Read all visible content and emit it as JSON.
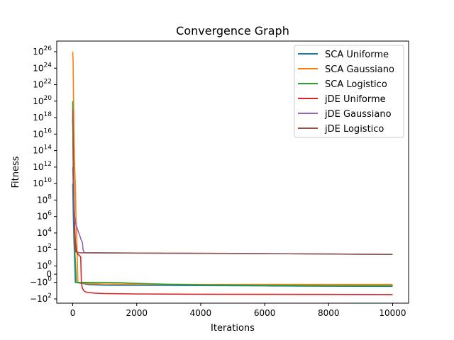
{
  "chart_data": {
    "type": "line",
    "title": "Convergence Graph",
    "xlabel": "Iterations",
    "ylabel": "Fitness",
    "yscale": "symlog",
    "xlim": [
      -500,
      10500
    ],
    "x_ticks": [
      0,
      2000,
      4000,
      6000,
      8000,
      10000
    ],
    "x_tick_labels": [
      "0",
      "2000",
      "4000",
      "6000",
      "8000",
      "10000"
    ],
    "y_ticks": [
      {
        "value": -100,
        "base": "−",
        "mant": "10",
        "exp": "2"
      },
      {
        "value": -1,
        "base": "−",
        "mant": "10",
        "exp": "0"
      },
      {
        "value": 0,
        "base": "",
        "mant": "0",
        "exp": ""
      },
      {
        "value": 1,
        "base": "",
        "mant": "10",
        "exp": "0"
      },
      {
        "value": 100,
        "base": "",
        "mant": "10",
        "exp": "2"
      },
      {
        "value": 10000.0,
        "base": "",
        "mant": "10",
        "exp": "4"
      },
      {
        "value": 1000000.0,
        "base": "",
        "mant": "10",
        "exp": "6"
      },
      {
        "value": 100000000.0,
        "base": "",
        "mant": "10",
        "exp": "8"
      },
      {
        "value": 10000000000.0,
        "base": "",
        "mant": "10",
        "exp": "10"
      },
      {
        "value": 1000000000000.0,
        "base": "",
        "mant": "10",
        "exp": "12"
      },
      {
        "value": 100000000000000.0,
        "base": "",
        "mant": "10",
        "exp": "14"
      },
      {
        "value": 1e+16,
        "base": "",
        "mant": "10",
        "exp": "16"
      },
      {
        "value": 1e+18,
        "base": "",
        "mant": "10",
        "exp": "18"
      },
      {
        "value": 1e+20,
        "base": "",
        "mant": "10",
        "exp": "20"
      },
      {
        "value": 1e+22,
        "base": "",
        "mant": "10",
        "exp": "22"
      },
      {
        "value": 1e+24,
        "base": "",
        "mant": "10",
        "exp": "24"
      },
      {
        "value": 1e+26,
        "base": "",
        "mant": "10",
        "exp": "26"
      }
    ],
    "legend_position": "top-right",
    "grid": false,
    "series": [
      {
        "name": "SCA Uniforme",
        "color": "#1f77b4",
        "points": [
          [
            0,
            10000000000.0
          ],
          [
            20,
            1000000.0
          ],
          [
            40,
            1000.0
          ],
          [
            60,
            3
          ],
          [
            80,
            -1
          ],
          [
            100,
            -1
          ],
          [
            500,
            -1.8
          ],
          [
            1000,
            -2.2
          ],
          [
            2000,
            -2.3
          ],
          [
            4000,
            -2.4
          ],
          [
            6000,
            -2.6
          ],
          [
            8000,
            -2.9
          ],
          [
            10000,
            -3
          ]
        ]
      },
      {
        "name": "SCA Gaussiano",
        "color": "#ff7f0e",
        "points": [
          [
            0,
            1e+26
          ],
          [
            10,
            1e+25
          ],
          [
            25,
            1e+20
          ],
          [
            40,
            1e+16
          ],
          [
            60,
            1000000000000.0
          ],
          [
            80,
            10000000000.0
          ],
          [
            100,
            1000000.0
          ],
          [
            120,
            10000.0
          ],
          [
            140,
            10
          ],
          [
            160,
            -1
          ],
          [
            500,
            -1.4
          ],
          [
            1000,
            -1.6
          ],
          [
            2000,
            -1.7
          ],
          [
            4000,
            -1.8
          ],
          [
            6000,
            -1.8
          ],
          [
            8000,
            -1.8
          ],
          [
            10000,
            -1.8
          ]
        ]
      },
      {
        "name": "SCA Logistico",
        "color": "#2ca02c",
        "points": [
          [
            0,
            1e+20
          ],
          [
            15,
            1000000000000000.0
          ],
          [
            30,
            10000000000.0
          ],
          [
            50,
            10000.0
          ],
          [
            70,
            30
          ],
          [
            90,
            1
          ],
          [
            110,
            -1
          ],
          [
            500,
            -1
          ],
          [
            1000,
            -1
          ],
          [
            1500,
            -1.1
          ],
          [
            2000,
            -1.3
          ],
          [
            3000,
            -1.7
          ],
          [
            4000,
            -2
          ],
          [
            6000,
            -2.3
          ],
          [
            8000,
            -2.5
          ],
          [
            10000,
            -2.5
          ]
        ]
      },
      {
        "name": "jDE Uniforme",
        "color": "#d62728",
        "points": [
          [
            0,
            1e+18
          ],
          [
            20,
            1000000000000.0
          ],
          [
            40,
            100000000.0
          ],
          [
            60,
            100000.0
          ],
          [
            80,
            1000.0
          ],
          [
            100,
            200
          ],
          [
            130,
            50
          ],
          [
            160,
            25
          ],
          [
            200,
            20
          ],
          [
            230,
            15
          ],
          [
            250,
            12
          ],
          [
            270,
            -1
          ],
          [
            300,
            -5
          ],
          [
            350,
            -10
          ],
          [
            400,
            -14
          ],
          [
            500,
            -17
          ],
          [
            700,
            -20
          ],
          [
            1000,
            -22
          ],
          [
            2000,
            -25
          ],
          [
            4000,
            -27
          ],
          [
            6000,
            -28
          ],
          [
            8000,
            -29
          ],
          [
            10000,
            -30
          ]
        ]
      },
      {
        "name": "jDE Gaussiano",
        "color": "#9467bd",
        "points": [
          [
            0,
            1000000000000.0
          ],
          [
            30,
            100000000.0
          ],
          [
            60,
            1000000.0
          ],
          [
            80,
            300000.0
          ],
          [
            100,
            100000.0
          ],
          [
            130,
            50000.0
          ],
          [
            160,
            20000.0
          ],
          [
            190,
            10000.0
          ],
          [
            220,
            5000.0
          ],
          [
            250,
            2000.0
          ],
          [
            280,
            1000.0
          ],
          [
            300,
            800
          ],
          [
            320,
            100
          ],
          [
            360,
            40
          ],
          [
            1000,
            38
          ],
          [
            3000,
            35
          ],
          [
            5000,
            33
          ],
          [
            8000,
            28
          ],
          [
            10000,
            25
          ]
        ]
      },
      {
        "name": "jDE Logistico",
        "color": "#8c564b",
        "points": [
          [
            0,
            1e+19
          ],
          [
            15,
            1000000000000.0
          ],
          [
            30,
            100000000.0
          ],
          [
            45,
            100000.0
          ],
          [
            60,
            1000.0
          ],
          [
            80,
            100
          ],
          [
            100,
            50
          ],
          [
            200,
            40
          ],
          [
            1000,
            38
          ],
          [
            3000,
            35
          ],
          [
            5000,
            33
          ],
          [
            8000,
            28
          ],
          [
            10000,
            25
          ]
        ]
      }
    ]
  }
}
